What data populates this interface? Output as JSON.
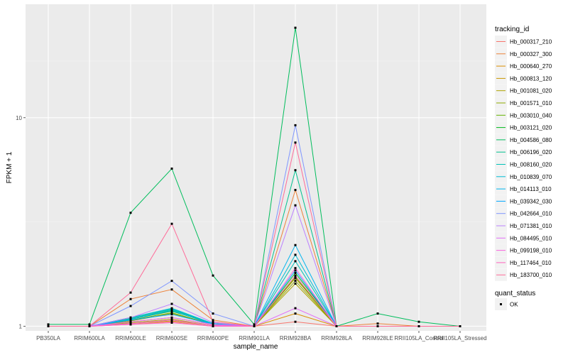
{
  "chart_data": {
    "type": "line",
    "xlabel": "sample_name",
    "ylabel": "FPKM + 1",
    "y_scale": "log",
    "ylim": [
      0.95,
      35
    ],
    "y_ticks": [
      1,
      10
    ],
    "y_tick_labels": [
      "1",
      "10"
    ],
    "grid": true,
    "categories": [
      "PB350LA",
      "RRIM600LA",
      "RRIM600LE",
      "RRIM600SE",
      "RRIM600PE",
      "RRIM901LA",
      "RRIM928BA",
      "RRIM928LA",
      "RRIM928LE",
      "RRII105LA_Control",
      "RRII105LA_Stressed"
    ],
    "legend_title": "tracking_id",
    "legend_position": "right",
    "series": [
      {
        "name": "Hb_000317_210",
        "color": "#F8766D",
        "values": [
          1.0,
          1.0,
          1.02,
          1.05,
          1.0,
          1.0,
          1.05,
          1.0,
          1.0,
          1.0,
          1.0
        ]
      },
      {
        "name": "Hb_000327_300",
        "color": "#EC8239",
        "values": [
          1.0,
          1.0,
          1.35,
          1.5,
          1.07,
          1.0,
          4.5,
          1.0,
          1.03,
          1.0,
          1.0
        ]
      },
      {
        "name": "Hb_000640_270",
        "color": "#DB8E00",
        "values": [
          1.0,
          1.0,
          1.05,
          1.1,
          1.02,
          1.0,
          1.15,
          1.0,
          1.0,
          1.0,
          1.0
        ]
      },
      {
        "name": "Hb_000813_120",
        "color": "#C79800",
        "values": [
          1.0,
          1.0,
          1.03,
          1.06,
          1.01,
          1.0,
          1.7,
          1.0,
          1.0,
          1.0,
          1.0
        ]
      },
      {
        "name": "Hb_001081_020",
        "color": "#AEA200",
        "values": [
          1.0,
          1.0,
          1.04,
          1.08,
          1.01,
          1.0,
          1.6,
          1.0,
          1.0,
          1.0,
          1.0
        ]
      },
      {
        "name": "Hb_001571_010",
        "color": "#8FAA00",
        "values": [
          1.0,
          1.0,
          1.06,
          1.15,
          1.02,
          1.0,
          1.65,
          1.0,
          1.0,
          1.0,
          1.0
        ]
      },
      {
        "name": "Hb_003010_040",
        "color": "#64B200",
        "values": [
          1.0,
          1.0,
          1.07,
          1.16,
          1.02,
          1.0,
          1.72,
          1.0,
          1.0,
          1.0,
          1.0
        ]
      },
      {
        "name": "Hb_003121_020",
        "color": "#00B81B",
        "values": [
          1.0,
          1.0,
          1.08,
          1.18,
          1.03,
          1.0,
          1.8,
          1.0,
          1.0,
          1.0,
          1.0
        ]
      },
      {
        "name": "Hb_004586_080",
        "color": "#00BD5C",
        "values": [
          1.02,
          1.02,
          3.5,
          5.7,
          1.75,
          1.02,
          27.0,
          1.0,
          1.15,
          1.05,
          1.0
        ]
      },
      {
        "name": "Hb_006196_020",
        "color": "#00C08E",
        "values": [
          1.0,
          1.0,
          1.09,
          1.2,
          1.03,
          1.0,
          5.6,
          1.0,
          1.0,
          1.0,
          1.0
        ]
      },
      {
        "name": "Hb_008160_020",
        "color": "#00C1B7",
        "values": [
          1.0,
          1.0,
          1.1,
          1.21,
          1.03,
          1.0,
          2.05,
          1.0,
          1.0,
          1.0,
          1.0
        ]
      },
      {
        "name": "Hb_010839_070",
        "color": "#00BDD4",
        "values": [
          1.0,
          1.0,
          1.1,
          1.22,
          1.03,
          1.0,
          2.2,
          1.0,
          1.0,
          1.0,
          1.0
        ]
      },
      {
        "name": "Hb_014113_010",
        "color": "#00B5EE",
        "values": [
          1.0,
          1.0,
          1.08,
          1.19,
          1.02,
          1.0,
          2.45,
          1.0,
          1.0,
          1.0,
          1.0
        ]
      },
      {
        "name": "Hb_039342_030",
        "color": "#00A7FF",
        "values": [
          1.0,
          1.0,
          1.07,
          1.14,
          1.02,
          1.0,
          1.85,
          1.0,
          1.0,
          1.0,
          1.0
        ]
      },
      {
        "name": "Hb_042664_010",
        "color": "#7F96FF",
        "values": [
          1.0,
          1.0,
          1.25,
          1.65,
          1.15,
          1.0,
          9.2,
          1.0,
          1.0,
          1.0,
          1.0
        ]
      },
      {
        "name": "Hb_071381_010",
        "color": "#BC81FF",
        "values": [
          1.0,
          1.0,
          1.1,
          1.28,
          1.04,
          1.0,
          3.8,
          1.0,
          1.0,
          1.0,
          1.0
        ]
      },
      {
        "name": "Hb_084495_010",
        "color": "#E26EF7",
        "values": [
          1.0,
          1.0,
          1.05,
          1.1,
          1.02,
          1.0,
          1.22,
          1.0,
          1.0,
          1.0,
          1.0
        ]
      },
      {
        "name": "Hb_099198_010",
        "color": "#F863DF",
        "values": [
          1.0,
          1.0,
          1.03,
          1.07,
          1.01,
          1.0,
          1.9,
          1.0,
          1.0,
          1.0,
          1.0
        ]
      },
      {
        "name": "Hb_117464_010",
        "color": "#FF62BF",
        "values": [
          1.0,
          1.0,
          1.02,
          1.04,
          1.0,
          1.0,
          1.75,
          1.0,
          1.0,
          1.0,
          1.0
        ]
      },
      {
        "name": "Hb_183700_010",
        "color": "#FF6A98",
        "values": [
          1.0,
          1.0,
          1.45,
          3.1,
          1.05,
          1.0,
          7.6,
          1.0,
          1.0,
          1.0,
          1.0
        ]
      }
    ],
    "shape_legend_title": "quant_status",
    "shape_legend_items": [
      "OK"
    ]
  }
}
